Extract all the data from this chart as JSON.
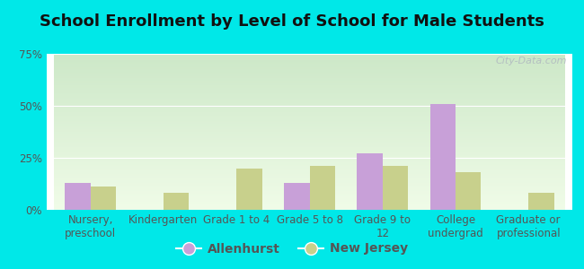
{
  "title": "School Enrollment by Level of School for Male Students",
  "categories": [
    "Nursery,\npreschool",
    "Kindergarten",
    "Grade 1 to 4",
    "Grade 5 to 8",
    "Grade 9 to\n12",
    "College\nundergrad",
    "Graduate or\nprofessional"
  ],
  "allenhurst": [
    13,
    0,
    0,
    13,
    27,
    51,
    0
  ],
  "new_jersey": [
    11,
    8,
    20,
    21,
    21,
    18,
    8
  ],
  "allenhurst_color": "#c8a0d8",
  "new_jersey_color": "#c8d08c",
  "background_color": "#00e8e8",
  "grad_top": "#cde8c8",
  "grad_bottom": "#f0fce8",
  "ylim": [
    0,
    75
  ],
  "yticks": [
    0,
    25,
    50,
    75
  ],
  "ytick_labels": [
    "0%",
    "25%",
    "50%",
    "75%"
  ],
  "bar_width": 0.35,
  "legend_labels": [
    "Allenhurst",
    "New Jersey"
  ],
  "title_fontsize": 13,
  "tick_fontsize": 8.5,
  "legend_fontsize": 10,
  "watermark": "City-Data.com"
}
